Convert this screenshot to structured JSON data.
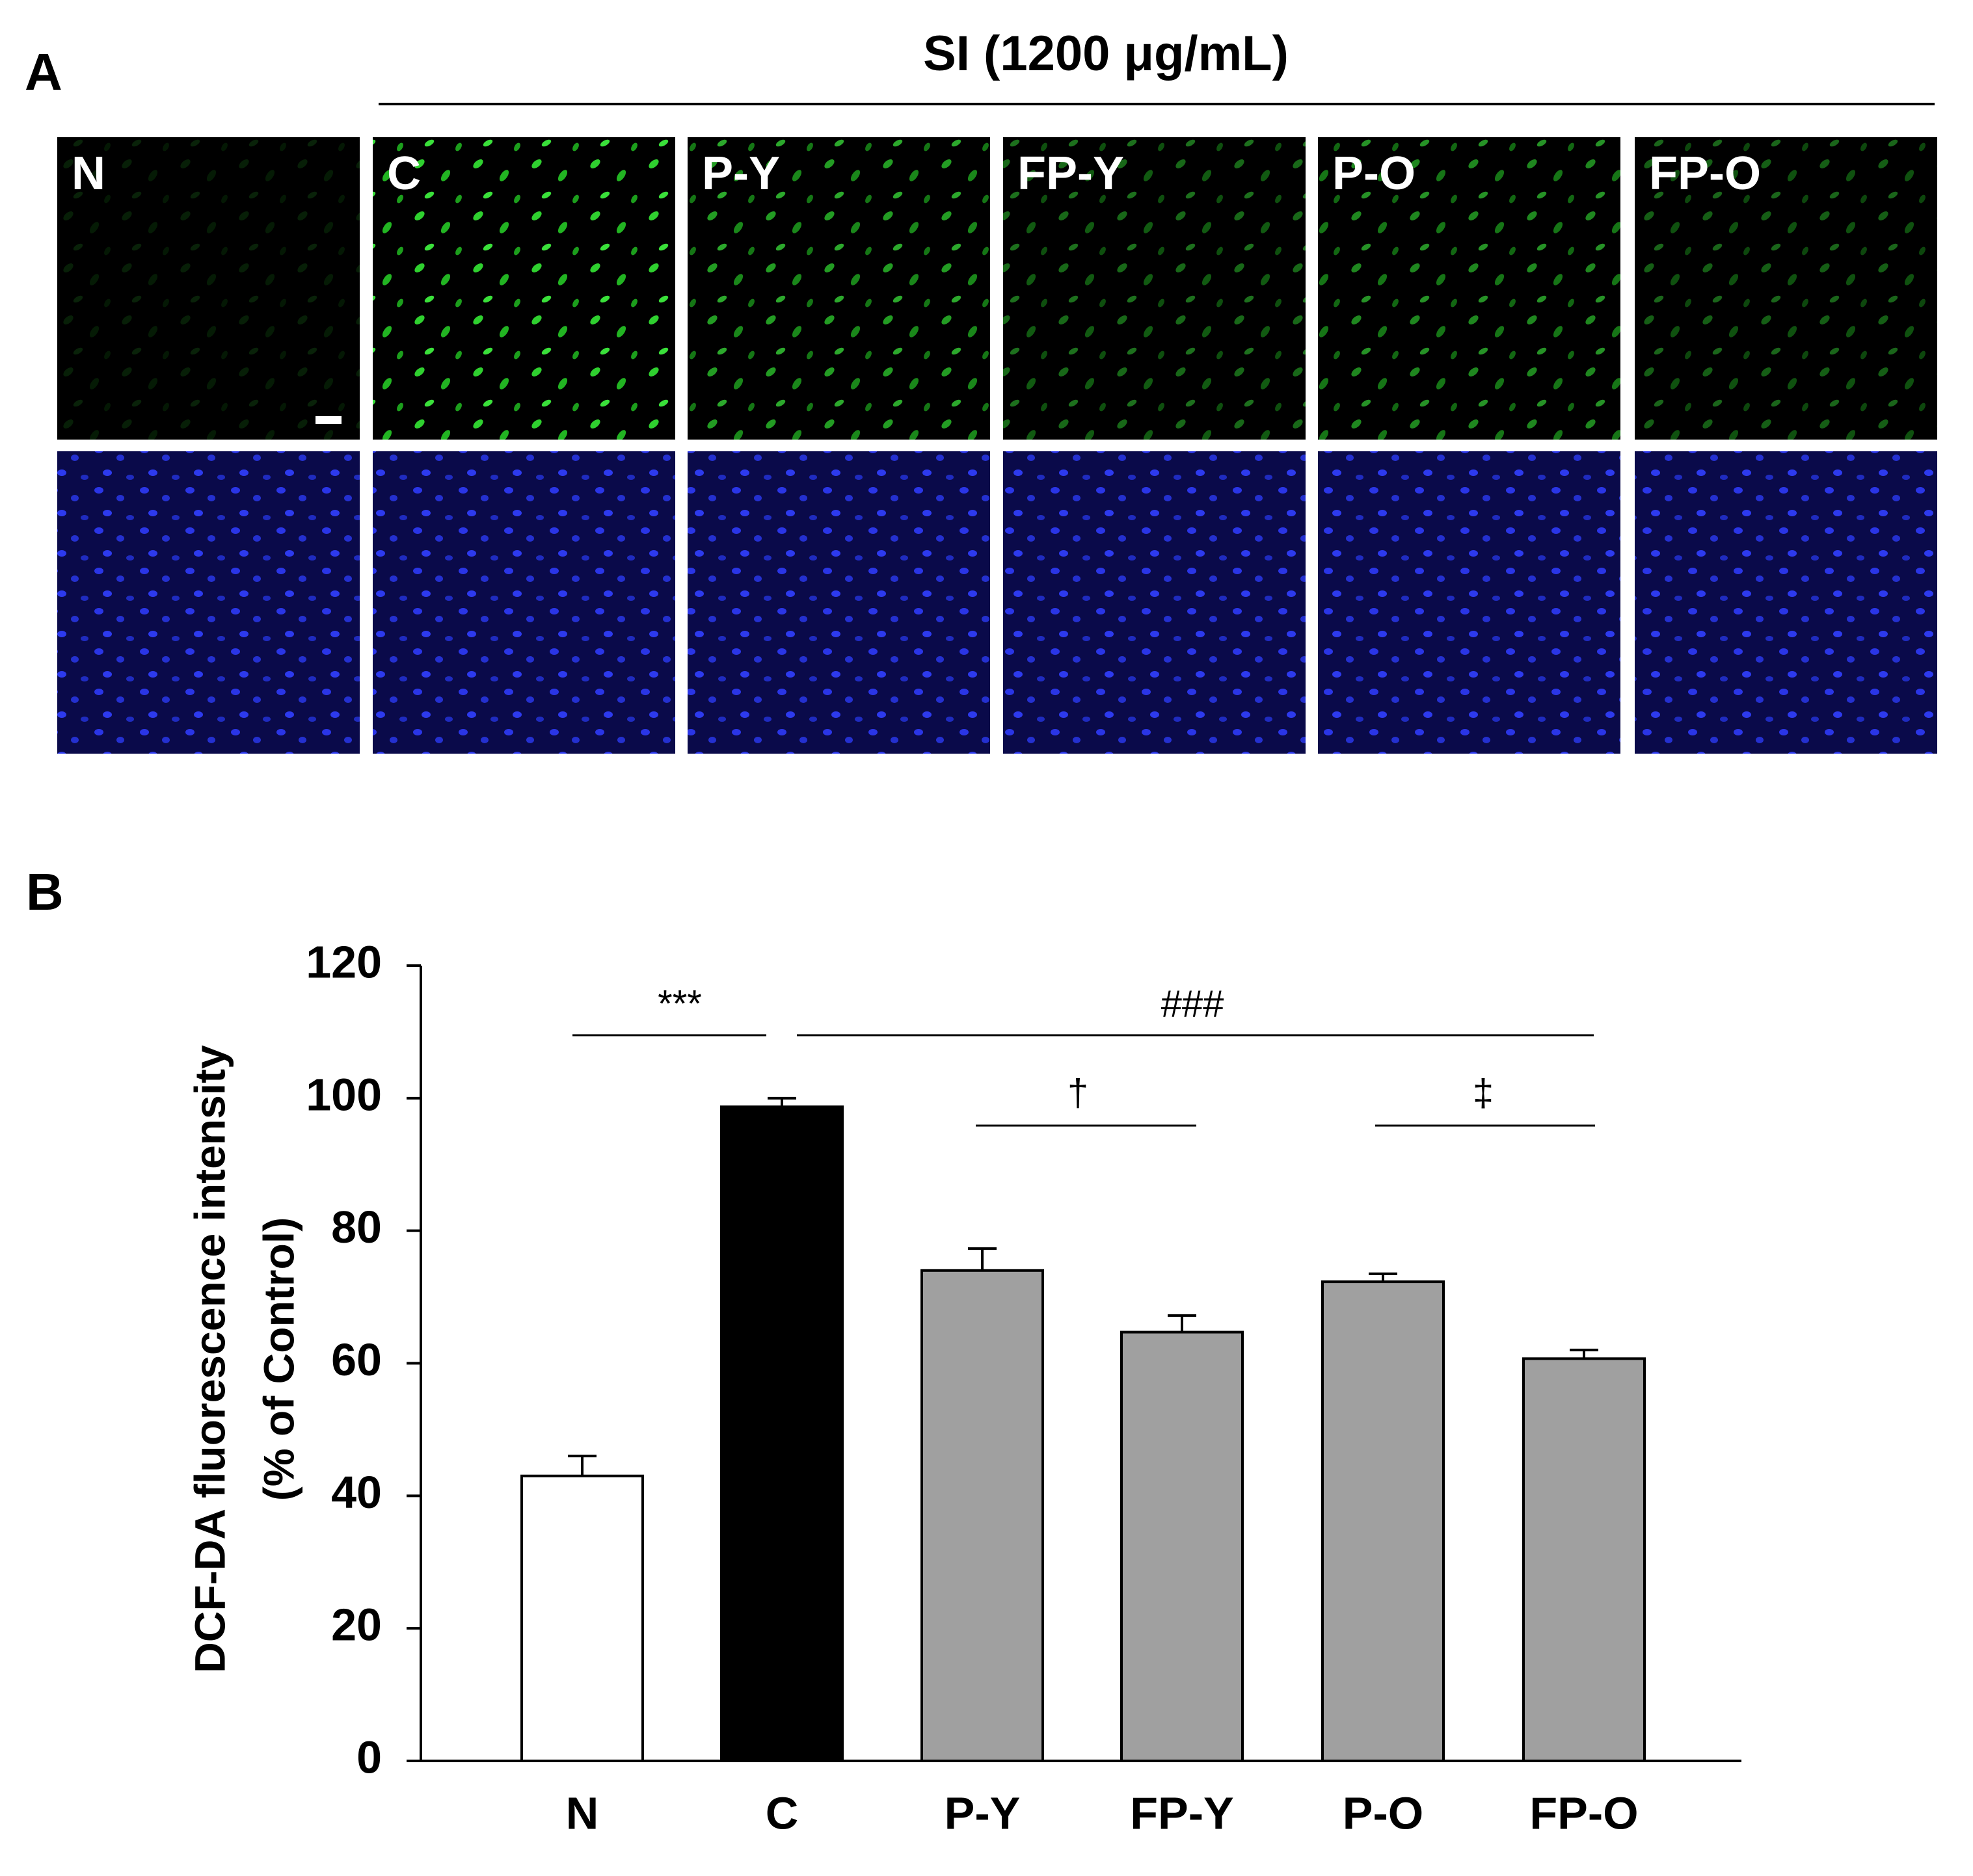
{
  "panel_a": {
    "label": "A",
    "title": "SI (1200 μg/mL)",
    "images": [
      "N",
      "C",
      "P-Y",
      "FP-Y",
      "P-O",
      "FP-O"
    ]
  },
  "chart_data": {
    "type": "bar",
    "panel_label": "B",
    "ylabel": [
      "DCF-DA fluorescence intensity",
      "(% of Control)"
    ],
    "categories": [
      "N",
      "C",
      "P-Y",
      "FP-Y",
      "P-O",
      "FP-O"
    ],
    "values": [
      43,
      98.7,
      74,
      64.7,
      72.3,
      60.7
    ],
    "errors": [
      3,
      1.3,
      3.3,
      2.5,
      1.2,
      1.3
    ],
    "colors": [
      "#ffffff",
      "#000000",
      "#a0a0a0",
      "#a0a0a0",
      "#a0a0a0",
      "#a0a0a0"
    ],
    "ylim": [
      0,
      120
    ],
    "yticks": [
      0,
      20,
      40,
      60,
      80,
      100,
      120
    ],
    "annotations": [
      "***",
      "###",
      "†",
      "‡"
    ]
  }
}
